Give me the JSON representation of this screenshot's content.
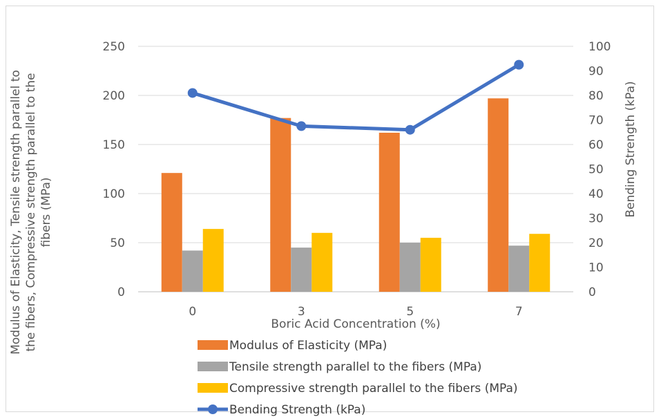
{
  "chart_data": {
    "type": "bar",
    "categories": [
      "0",
      "3",
      "5",
      "7"
    ],
    "series": [
      {
        "name": "Modulus of Elasticity (MPa)",
        "axis": "left",
        "kind": "bar",
        "color": "#ED7D31",
        "values": [
          121,
          177,
          162,
          197
        ]
      },
      {
        "name": "Tensile strength parallel to the fibers (MPa)",
        "axis": "left",
        "kind": "bar",
        "color": "#A5A5A5",
        "values": [
          42,
          45,
          50,
          47
        ]
      },
      {
        "name": "Compressive strength parallel to the fibers (MPa)",
        "axis": "left",
        "kind": "bar",
        "color": "#FFC000",
        "values": [
          64,
          60,
          55,
          59
        ]
      },
      {
        "name": "Bending Strength (kPa)",
        "axis": "right",
        "kind": "line",
        "color": "#4472C4",
        "values": [
          81,
          67.5,
          66,
          92.5
        ]
      }
    ],
    "xlabel": "Boric Acid Concentration (%)",
    "ylabel_left_lines": [
      "Modulus of Elasticity, Tensile strength parallel to",
      "the fibers, Compressive strength parallel to the",
      "fibers (MPa)"
    ],
    "ylabel_right": "Bending Strength (kPa)",
    "ylim_left": [
      0,
      250
    ],
    "yticks_left": [
      "0",
      "50",
      "100",
      "150",
      "200",
      "250"
    ],
    "ylim_right": [
      0,
      100
    ],
    "yticks_right": [
      "0",
      "10",
      "20",
      "30",
      "40",
      "50",
      "60",
      "70",
      "80",
      "90",
      "100"
    ],
    "grid": true,
    "legend_position": "bottom"
  }
}
